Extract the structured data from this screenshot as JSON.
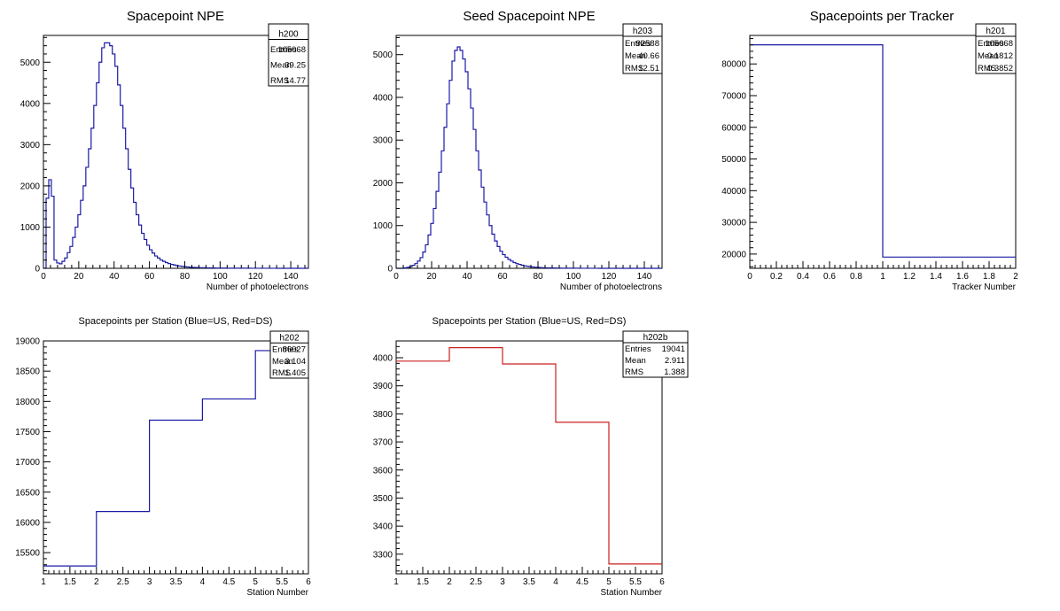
{
  "canvas": {
    "background": "#ffffff"
  },
  "chart_data": [
    {
      "id": "p1",
      "type": "histogram",
      "title": "Spacepoint NPE",
      "xlabel": "Number of photoelectrons",
      "ylabel": "",
      "xlim": [
        0,
        150
      ],
      "ylim": [
        0,
        5650
      ],
      "xticks": [
        0,
        20,
        40,
        60,
        80,
        100,
        120,
        140
      ],
      "yticks": [
        0,
        1000,
        2000,
        3000,
        4000,
        5000
      ],
      "color": "#1a1aa6",
      "bin_width": 1.5,
      "bin_start": 0,
      "values": [
        0,
        1700,
        2150,
        1750,
        200,
        130,
        110,
        170,
        250,
        380,
        530,
        750,
        1000,
        1300,
        1650,
        2000,
        2450,
        2900,
        3400,
        3950,
        4500,
        5000,
        5350,
        5470,
        5470,
        5400,
        5200,
        4900,
        4450,
        3950,
        3400,
        2900,
        2400,
        1950,
        1600,
        1300,
        1050,
        850,
        700,
        560,
        450,
        370,
        300,
        250,
        200,
        170,
        140,
        115,
        95,
        80,
        65,
        55,
        45,
        38,
        32,
        27,
        23,
        20,
        17,
        15,
        13,
        11,
        10,
        9,
        8,
        7,
        6,
        5,
        5,
        4,
        4,
        3,
        3,
        3,
        2,
        2,
        2,
        2,
        1,
        1,
        1,
        1,
        1,
        1,
        1,
        1,
        1,
        1,
        0,
        0,
        0,
        0,
        0,
        0,
        0,
        0,
        0,
        0,
        0,
        0
      ],
      "stats": {
        "name": "h200",
        "entries": "105068",
        "mean": "39.25",
        "rms": "14.77"
      }
    },
    {
      "id": "p2",
      "type": "histogram",
      "title": "Seed Spacepoint NPE",
      "xlabel": "Number of photoelectrons",
      "ylabel": "",
      "xlim": [
        0,
        150
      ],
      "ylim": [
        0,
        5450
      ],
      "xticks": [
        0,
        20,
        40,
        60,
        80,
        100,
        120,
        140
      ],
      "yticks": [
        0,
        1000,
        2000,
        3000,
        4000,
        5000
      ],
      "color": "#1a1aa6",
      "bin_width": 1.5,
      "bin_start": 0,
      "values": [
        0,
        0,
        0,
        10,
        20,
        40,
        70,
        110,
        170,
        250,
        380,
        550,
        780,
        1050,
        1400,
        1800,
        2250,
        2750,
        3300,
        3850,
        4400,
        4850,
        5100,
        5180,
        5100,
        4900,
        4600,
        4200,
        3750,
        3250,
        2750,
        2300,
        1900,
        1550,
        1250,
        1000,
        800,
        640,
        510,
        400,
        320,
        260,
        210,
        170,
        135,
        110,
        90,
        72,
        58,
        47,
        38,
        31,
        25,
        21,
        17,
        14,
        12,
        10,
        8,
        7,
        6,
        5,
        4,
        4,
        3,
        3,
        2,
        2,
        2,
        1,
        1,
        1,
        1,
        1,
        1,
        1,
        0,
        0,
        0,
        0,
        0,
        0,
        0,
        0,
        0,
        0,
        0,
        0,
        0,
        0,
        0,
        0,
        0,
        0,
        0,
        0,
        0,
        0,
        0,
        0
      ],
      "stats": {
        "name": "h203",
        "entries": "92588",
        "mean": "40.66",
        "rms": "12.51"
      }
    },
    {
      "id": "p3",
      "type": "histogram",
      "title": "Spacepoints per Tracker",
      "xlabel": "Tracker Number",
      "ylabel": "",
      "xlim": [
        0,
        2
      ],
      "ylim": [
        15500,
        89000
      ],
      "xticks": [
        0,
        0.2,
        0.4,
        0.6,
        0.8,
        1,
        1.2,
        1.4,
        1.6,
        1.8,
        2
      ],
      "yticks": [
        20000,
        30000,
        40000,
        50000,
        60000,
        70000,
        80000
      ],
      "color": "#1a1aa6",
      "bin_width": 1,
      "bin_start": 0,
      "values": [
        86027,
        19041
      ],
      "stats": {
        "name": "h201",
        "entries": "105068",
        "mean": "0.1812",
        "rms": "0.3852"
      }
    },
    {
      "id": "p4",
      "type": "histogram",
      "title": "Spacepoints per Station (Blue=US, Red=DS)",
      "xlabel": "Station Number",
      "ylabel": "",
      "xlim": [
        1,
        6
      ],
      "ylim": [
        15150,
        19000
      ],
      "xticks": [
        1,
        1.5,
        2,
        2.5,
        3,
        3.5,
        4,
        4.5,
        5,
        5.5,
        6
      ],
      "yticks": [
        15500,
        16000,
        16500,
        17000,
        17500,
        18000,
        18500,
        19000
      ],
      "color": "#1a1aa6",
      "bin_width": 1,
      "bin_start": 1,
      "values": [
        15280,
        16180,
        17690,
        18040,
        18840
      ],
      "stats": {
        "name": "h202",
        "entries": "86027",
        "mean": "3.104",
        "rms": "1.405"
      }
    },
    {
      "id": "p5",
      "type": "histogram",
      "title": "Spacepoints per Station (Blue=US, Red=DS)",
      "xlabel": "Station Number",
      "ylabel": "",
      "xlim": [
        1,
        6
      ],
      "ylim": [
        3230,
        4060
      ],
      "xticks": [
        1,
        1.5,
        2,
        2.5,
        3,
        3.5,
        4,
        4.5,
        5,
        5.5,
        6
      ],
      "yticks": [
        3300,
        3400,
        3500,
        3600,
        3700,
        3800,
        3900,
        4000
      ],
      "color": "#cc2020",
      "bin_width": 1,
      "bin_start": 1,
      "values": [
        3988,
        4036,
        3978,
        3770,
        3265
      ],
      "stats": {
        "name": "h202b",
        "entries": "19041",
        "mean": "2.911",
        "rms": "1.388"
      }
    }
  ],
  "stats_labels": {
    "entries": "Entries",
    "mean": "Mean",
    "rms": "RMS"
  }
}
